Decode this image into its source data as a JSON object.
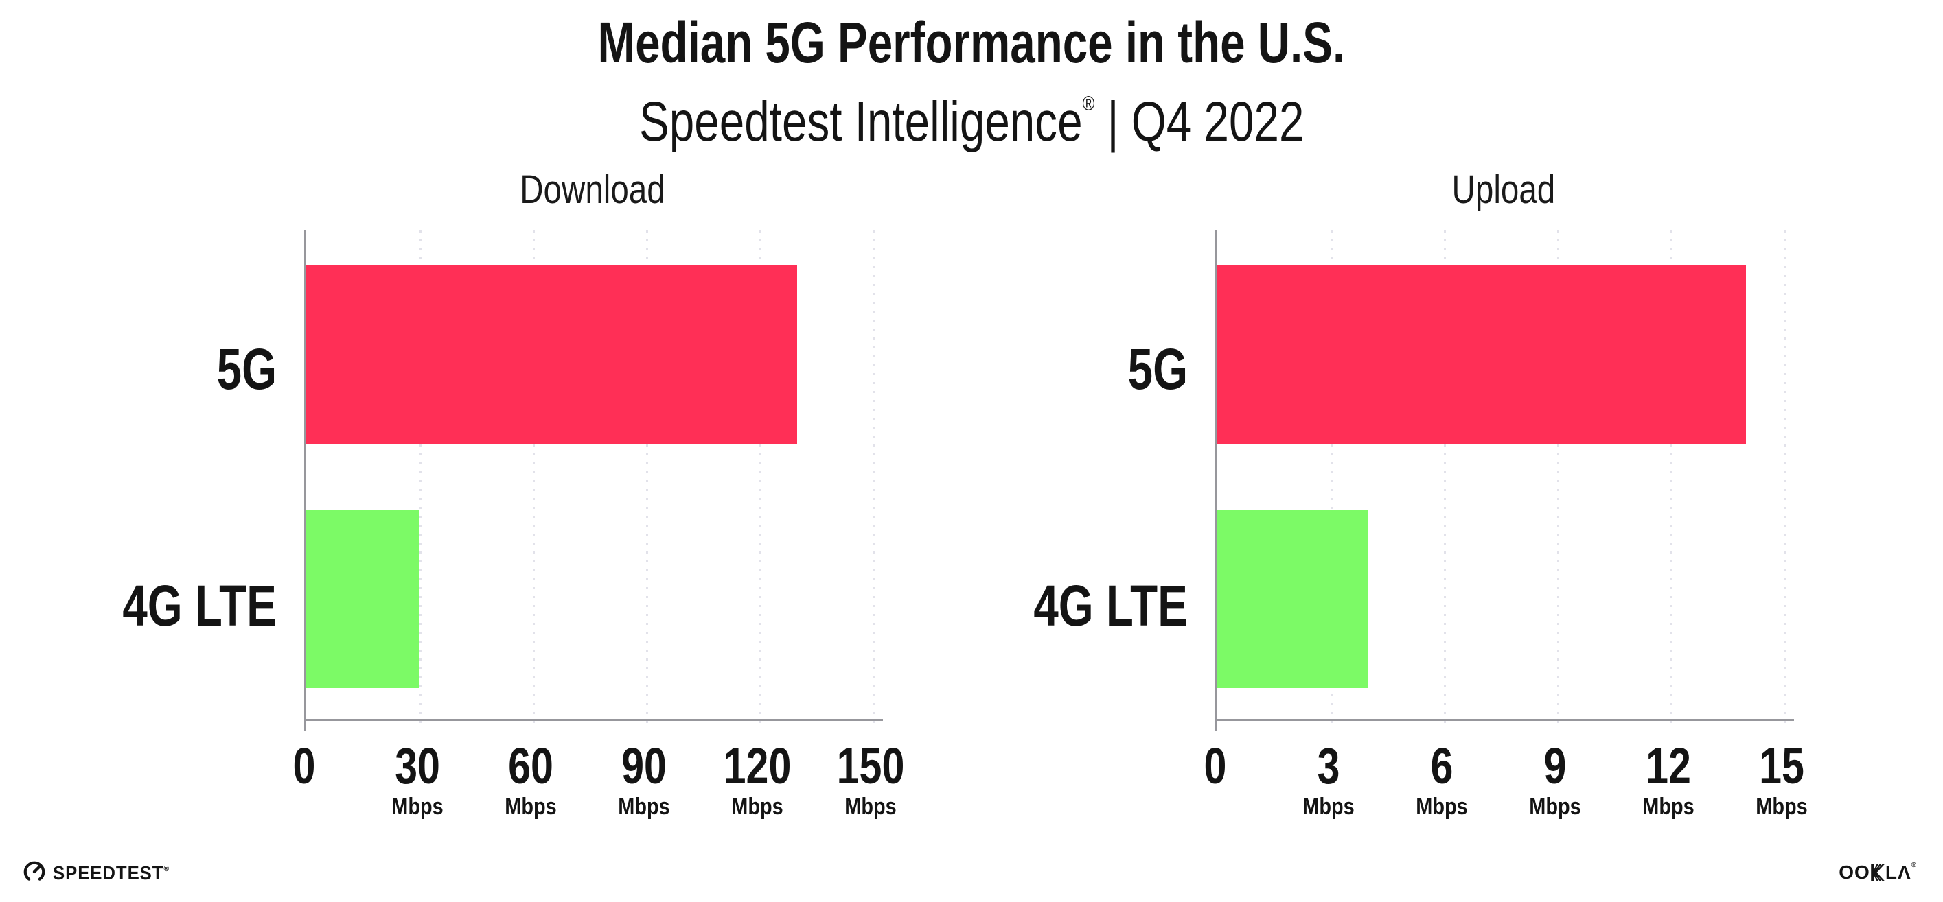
{
  "header": {
    "title": "Median 5G Performance in the U.S.",
    "subtitle_brand": "Speedtest Intelligence",
    "subtitle_trademark": "®",
    "subtitle_rest": " | Q4 2022"
  },
  "chart_data": [
    {
      "type": "bar",
      "orientation": "horizontal",
      "title": "Download",
      "categories": [
        "5G",
        "4G LTE"
      ],
      "values": [
        130,
        30
      ],
      "unit": "Mbps",
      "xlabel": "Mbps",
      "xlim": [
        0,
        150
      ],
      "xticks": [
        0,
        30,
        60,
        90,
        120,
        150
      ],
      "bar_colors": [
        "#FF2F56",
        "#7CFA66"
      ],
      "grid": true,
      "legend": "none"
    },
    {
      "type": "bar",
      "orientation": "horizontal",
      "title": "Upload",
      "categories": [
        "5G",
        "4G LTE"
      ],
      "values": [
        14,
        4
      ],
      "unit": "Mbps",
      "xlabel": "Mbps",
      "xlim": [
        0,
        15
      ],
      "xticks": [
        0,
        3,
        6,
        9,
        12,
        15
      ],
      "bar_colors": [
        "#FF2F56",
        "#7CFA66"
      ],
      "grid": true,
      "legend": "none"
    }
  ],
  "footer": {
    "speedtest_label": "SPEEDTEST",
    "speedtest_trademark": "®",
    "ookla_left": "OO",
    "ookla_right": "LΛ",
    "ookla_trademark": "®"
  },
  "colors": {
    "bar_5g": "#FF2F56",
    "bar_4g_lte": "#7CFA66",
    "axis": "#97979C",
    "gridline": "#E2E2EA",
    "text": "#141414",
    "background": "#FFFFFF"
  }
}
